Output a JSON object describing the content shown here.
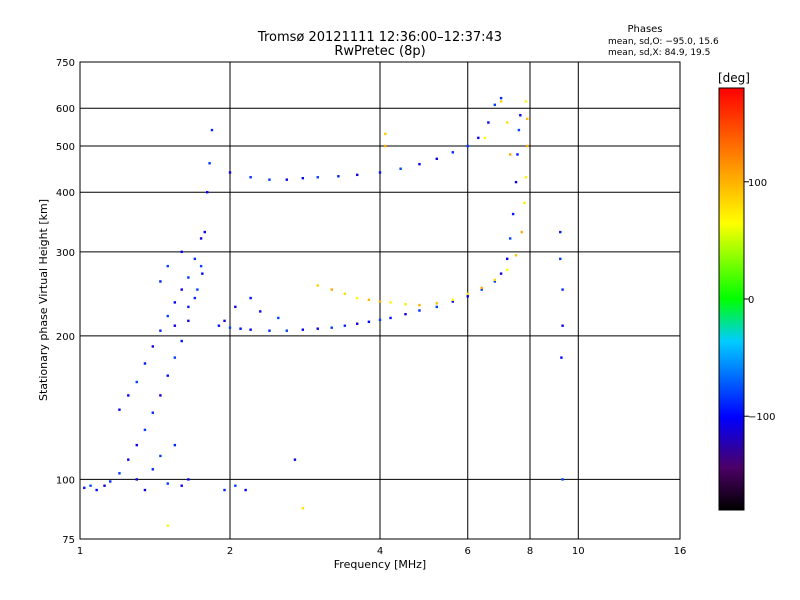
{
  "chart_data": {
    "type": "scatter",
    "title": "Tromsø 20121111 12:36:00–12:37:43",
    "subtitle": "RwPretec (8p)",
    "xlabel": "Frequency [MHz]",
    "ylabel": "Stationary phase Virtual Height [km]",
    "x_scale": "log",
    "y_scale": "log",
    "xlim": [
      1,
      16
    ],
    "ylim": [
      75,
      750
    ],
    "x_ticks": [
      1,
      2,
      4,
      6,
      8,
      10,
      16
    ],
    "x_tick_labels": [
      "1",
      "2",
      "4",
      "6",
      "8",
      "10",
      "16"
    ],
    "y_ticks": [
      75,
      100,
      200,
      300,
      400,
      500,
      600,
      750
    ],
    "y_tick_labels": [
      "75",
      "100",
      "200",
      "300",
      "400",
      "500",
      "600",
      "750"
    ],
    "grid": true,
    "legend": {
      "title": "Phases",
      "line1": "mean, sd,O: −95.0, 15.6",
      "line2": "mean, sd,X:  84.9, 19.5"
    },
    "colorbar": {
      "label": "[deg]",
      "range": [
        -180,
        180
      ],
      "ticks": [
        100,
        0,
        -100
      ],
      "tick_labels": [
        "100",
        "0",
        "−100"
      ]
    },
    "series": [
      {
        "name": "O-mode",
        "mean_phase": -95.0,
        "sd_phase": 15.6,
        "points": [
          [
            1.02,
            96
          ],
          [
            1.05,
            97
          ],
          [
            1.08,
            95
          ],
          [
            1.12,
            97
          ],
          [
            1.15,
            99
          ],
          [
            1.2,
            103
          ],
          [
            1.25,
            110
          ],
          [
            1.3,
            118
          ],
          [
            1.35,
            127
          ],
          [
            1.4,
            138
          ],
          [
            1.45,
            150
          ],
          [
            1.5,
            165
          ],
          [
            1.55,
            180
          ],
          [
            1.6,
            195
          ],
          [
            1.65,
            215
          ],
          [
            1.7,
            240
          ],
          [
            1.75,
            280
          ],
          [
            1.78,
            330
          ],
          [
            1.8,
            400
          ],
          [
            1.82,
            460
          ],
          [
            1.84,
            540
          ],
          [
            1.2,
            140
          ],
          [
            1.25,
            150
          ],
          [
            1.3,
            160
          ],
          [
            1.35,
            175
          ],
          [
            1.4,
            190
          ],
          [
            1.45,
            205
          ],
          [
            1.5,
            220
          ],
          [
            1.55,
            235
          ],
          [
            1.6,
            250
          ],
          [
            1.65,
            265
          ],
          [
            1.7,
            290
          ],
          [
            1.75,
            320
          ],
          [
            1.6,
            300
          ],
          [
            1.5,
            280
          ],
          [
            1.45,
            260
          ],
          [
            1.55,
            210
          ],
          [
            1.65,
            230
          ],
          [
            1.72,
            250
          ],
          [
            1.76,
            270
          ],
          [
            1.3,
            100
          ],
          [
            1.4,
            105
          ],
          [
            1.5,
            98
          ],
          [
            1.6,
            97
          ],
          [
            1.65,
            100
          ],
          [
            1.45,
            112
          ],
          [
            1.55,
            118
          ],
          [
            1.35,
            95
          ],
          [
            1.9,
            210
          ],
          [
            2.0,
            208
          ],
          [
            2.1,
            207
          ],
          [
            2.2,
            206
          ],
          [
            2.4,
            205
          ],
          [
            2.6,
            205
          ],
          [
            2.8,
            206
          ],
          [
            3.0,
            207
          ],
          [
            3.2,
            208
          ],
          [
            3.4,
            210
          ],
          [
            3.6,
            212
          ],
          [
            3.8,
            214
          ],
          [
            4.0,
            216
          ],
          [
            4.2,
            218
          ],
          [
            4.5,
            222
          ],
          [
            4.8,
            226
          ],
          [
            5.2,
            230
          ],
          [
            5.6,
            236
          ],
          [
            6.0,
            242
          ],
          [
            6.4,
            250
          ],
          [
            6.8,
            260
          ],
          [
            7.0,
            270
          ],
          [
            7.2,
            290
          ],
          [
            7.3,
            320
          ],
          [
            7.4,
            360
          ],
          [
            7.5,
            420
          ],
          [
            7.55,
            480
          ],
          [
            7.6,
            540
          ],
          [
            7.65,
            580
          ],
          [
            2.0,
            440
          ],
          [
            2.2,
            430
          ],
          [
            2.4,
            425
          ],
          [
            2.6,
            425
          ],
          [
            2.8,
            428
          ],
          [
            3.0,
            430
          ],
          [
            3.3,
            432
          ],
          [
            3.6,
            435
          ],
          [
            4.0,
            440
          ],
          [
            4.4,
            448
          ],
          [
            4.8,
            458
          ],
          [
            5.2,
            470
          ],
          [
            5.6,
            485
          ],
          [
            6.0,
            500
          ],
          [
            6.3,
            520
          ],
          [
            6.6,
            560
          ],
          [
            6.8,
            610
          ],
          [
            7.0,
            630
          ],
          [
            2.05,
            230
          ],
          [
            2.3,
            225
          ],
          [
            2.5,
            218
          ],
          [
            2.2,
            240
          ],
          [
            1.95,
            215
          ],
          [
            1.95,
            95
          ],
          [
            2.05,
            97
          ],
          [
            2.15,
            95
          ],
          [
            2.7,
            110
          ],
          [
            9.2,
            290
          ],
          [
            9.3,
            250
          ],
          [
            9.3,
            210
          ],
          [
            9.25,
            180
          ],
          [
            9.3,
            100
          ],
          [
            9.2,
            330
          ]
        ]
      },
      {
        "name": "X-mode",
        "mean_phase": 84.9,
        "sd_phase": 19.5,
        "points": [
          [
            3.0,
            255
          ],
          [
            3.2,
            250
          ],
          [
            3.4,
            245
          ],
          [
            3.6,
            240
          ],
          [
            3.8,
            238
          ],
          [
            4.0,
            236
          ],
          [
            4.2,
            235
          ],
          [
            4.5,
            233
          ],
          [
            4.8,
            232
          ],
          [
            5.2,
            234
          ],
          [
            5.6,
            238
          ],
          [
            6.0,
            245
          ],
          [
            6.4,
            252
          ],
          [
            6.8,
            262
          ],
          [
            7.2,
            275
          ],
          [
            7.5,
            295
          ],
          [
            7.7,
            330
          ],
          [
            7.8,
            380
          ],
          [
            7.85,
            430
          ],
          [
            7.9,
            500
          ],
          [
            7.9,
            570
          ],
          [
            7.85,
            620
          ],
          [
            7.2,
            560
          ],
          [
            7.3,
            480
          ],
          [
            7.0,
            620
          ],
          [
            6.5,
            520
          ],
          [
            4.1,
            530
          ],
          [
            4.1,
            500
          ],
          [
            2.8,
            87
          ],
          [
            1.5,
            80
          ]
        ]
      }
    ]
  }
}
